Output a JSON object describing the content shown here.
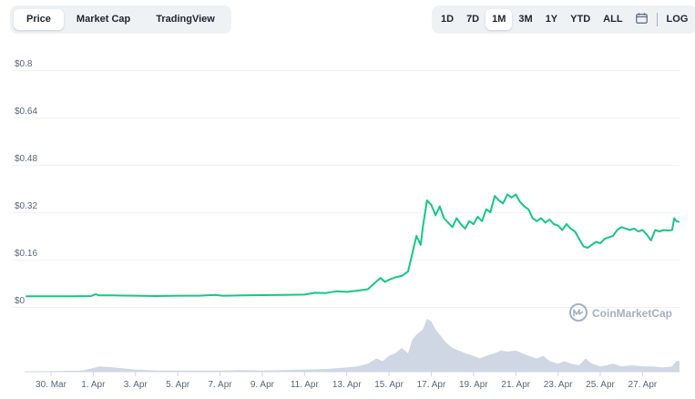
{
  "chart_type_tabs": [
    {
      "label": "Price",
      "active": true
    },
    {
      "label": "Market Cap",
      "active": false
    },
    {
      "label": "TradingView",
      "active": false
    }
  ],
  "range_tabs": [
    {
      "label": "1D",
      "active": false
    },
    {
      "label": "7D",
      "active": false
    },
    {
      "label": "1M",
      "active": true
    },
    {
      "label": "3M",
      "active": false
    },
    {
      "label": "1Y",
      "active": false
    },
    {
      "label": "YTD",
      "active": false
    },
    {
      "label": "ALL",
      "active": false
    }
  ],
  "calendar_icon": "calendar-icon",
  "log_label": "LOG",
  "watermark": {
    "text": "CoinMarketCap",
    "icon": "coinmarketcap-logo-icon"
  },
  "colors": {
    "line": "#16c784",
    "volume": "#cfd6e4",
    "grid": "#eff2f5",
    "text": "#58667e"
  },
  "chart_data": {
    "type": "line",
    "ylabel": "",
    "y_ticks": [
      "$0",
      "$0.16",
      "$0.32",
      "$0.48",
      "$0.64",
      "$0.8"
    ],
    "y_tick_values": [
      0,
      0.16,
      0.32,
      0.48,
      0.64,
      0.8
    ],
    "ylim": [
      0,
      0.8
    ],
    "x_ticks": [
      "30. Mar",
      "1. Apr",
      "3. Apr",
      "5. Apr",
      "7. Apr",
      "9. Apr",
      "11. Apr",
      "13. Apr",
      "15. Apr",
      "17. Apr",
      "19. Apr",
      "21. Apr",
      "23. Apr",
      "25. Apr",
      "27. Apr"
    ],
    "x_tick_days": [
      0,
      2,
      4,
      6,
      8,
      10,
      12,
      14,
      16,
      18,
      20,
      22,
      24,
      26,
      28
    ],
    "xlim_days": [
      -1.25,
      29.75
    ],
    "grid": true,
    "series": [
      {
        "price": [
          [
            -1.2,
            0.036
          ],
          [
            0,
            0.036
          ],
          [
            1,
            0.036
          ],
          [
            1.9,
            0.037
          ],
          [
            2.1,
            0.043
          ],
          [
            2.3,
            0.039
          ],
          [
            3,
            0.039
          ],
          [
            4,
            0.038
          ],
          [
            5,
            0.037
          ],
          [
            6,
            0.038
          ],
          [
            7,
            0.038
          ],
          [
            7.8,
            0.041
          ],
          [
            8.1,
            0.038
          ],
          [
            9,
            0.039
          ],
          [
            10,
            0.04
          ],
          [
            11,
            0.041
          ],
          [
            12,
            0.042
          ],
          [
            12.5,
            0.048
          ],
          [
            13,
            0.047
          ],
          [
            13.5,
            0.053
          ],
          [
            14,
            0.051
          ],
          [
            14.5,
            0.055
          ],
          [
            15,
            0.06
          ],
          [
            15.3,
            0.08
          ],
          [
            15.6,
            0.098
          ],
          [
            15.8,
            0.085
          ],
          [
            16,
            0.092
          ],
          [
            16.3,
            0.1
          ],
          [
            16.6,
            0.105
          ],
          [
            16.9,
            0.12
          ],
          [
            17.1,
            0.18
          ],
          [
            17.3,
            0.24
          ],
          [
            17.5,
            0.21
          ],
          [
            17.6,
            0.27
          ],
          [
            17.8,
            0.36
          ],
          [
            18,
            0.345
          ],
          [
            18.2,
            0.31
          ],
          [
            18.4,
            0.34
          ],
          [
            18.6,
            0.3
          ],
          [
            18.8,
            0.285
          ],
          [
            19,
            0.27
          ],
          [
            19.2,
            0.3
          ],
          [
            19.4,
            0.28
          ],
          [
            19.6,
            0.265
          ],
          [
            19.8,
            0.29
          ],
          [
            20,
            0.28
          ],
          [
            20.2,
            0.305
          ],
          [
            20.4,
            0.29
          ],
          [
            20.6,
            0.33
          ],
          [
            20.8,
            0.32
          ],
          [
            21,
            0.375
          ],
          [
            21.2,
            0.36
          ],
          [
            21.4,
            0.35
          ],
          [
            21.6,
            0.38
          ],
          [
            21.8,
            0.37
          ],
          [
            22,
            0.38
          ],
          [
            22.2,
            0.355
          ],
          [
            22.4,
            0.34
          ],
          [
            22.6,
            0.33
          ],
          [
            22.8,
            0.3
          ],
          [
            23,
            0.29
          ],
          [
            23.2,
            0.3
          ],
          [
            23.4,
            0.285
          ],
          [
            23.6,
            0.295
          ],
          [
            23.8,
            0.28
          ],
          [
            24,
            0.275
          ],
          [
            24.2,
            0.26
          ],
          [
            24.4,
            0.28
          ],
          [
            24.6,
            0.265
          ],
          [
            24.8,
            0.255
          ],
          [
            25,
            0.23
          ],
          [
            25.2,
            0.205
          ],
          [
            25.4,
            0.2
          ],
          [
            25.6,
            0.21
          ],
          [
            25.8,
            0.22
          ],
          [
            26,
            0.215
          ],
          [
            26.2,
            0.23
          ],
          [
            26.4,
            0.235
          ],
          [
            26.6,
            0.24
          ],
          [
            26.8,
            0.26
          ],
          [
            27,
            0.27
          ],
          [
            27.2,
            0.265
          ],
          [
            27.4,
            0.26
          ],
          [
            27.6,
            0.265
          ],
          [
            27.8,
            0.255
          ],
          [
            28,
            0.26
          ],
          [
            28.2,
            0.245
          ],
          [
            28.4,
            0.225
          ],
          [
            28.6,
            0.26
          ],
          [
            28.8,
            0.255
          ],
          [
            29,
            0.26
          ],
          [
            29.2,
            0.258
          ],
          [
            29.4,
            0.26
          ],
          [
            29.5,
            0.3
          ],
          [
            29.6,
            0.29
          ],
          [
            29.75,
            0.287
          ]
        ],
        "volume": [
          [
            -1.25,
            0.0
          ],
          [
            0,
            0.01
          ],
          [
            1.5,
            0.02
          ],
          [
            2.3,
            0.1
          ],
          [
            3,
            0.08
          ],
          [
            4,
            0.04
          ],
          [
            5,
            0.02
          ],
          [
            6,
            0.02
          ],
          [
            7,
            0.02
          ],
          [
            8,
            0.02
          ],
          [
            9,
            0.03
          ],
          [
            10,
            0.02
          ],
          [
            11,
            0.03
          ],
          [
            12,
            0.04
          ],
          [
            13,
            0.05
          ],
          [
            14,
            0.08
          ],
          [
            14.5,
            0.1
          ],
          [
            15,
            0.15
          ],
          [
            15.4,
            0.25
          ],
          [
            15.7,
            0.2
          ],
          [
            16,
            0.3
          ],
          [
            16.3,
            0.35
          ],
          [
            16.6,
            0.45
          ],
          [
            16.9,
            0.35
          ],
          [
            17.1,
            0.6
          ],
          [
            17.3,
            0.7
          ],
          [
            17.6,
            0.8
          ],
          [
            17.8,
            1.0
          ],
          [
            18,
            0.95
          ],
          [
            18.2,
            0.8
          ],
          [
            18.4,
            0.7
          ],
          [
            18.7,
            0.55
          ],
          [
            19,
            0.45
          ],
          [
            19.3,
            0.4
          ],
          [
            19.6,
            0.35
          ],
          [
            20,
            0.3
          ],
          [
            20.3,
            0.25
          ],
          [
            20.6,
            0.3
          ],
          [
            21,
            0.35
          ],
          [
            21.3,
            0.4
          ],
          [
            21.6,
            0.38
          ],
          [
            22,
            0.4
          ],
          [
            22.3,
            0.35
          ],
          [
            22.6,
            0.3
          ],
          [
            23,
            0.25
          ],
          [
            23.3,
            0.3
          ],
          [
            23.6,
            0.2
          ],
          [
            24,
            0.15
          ],
          [
            24.3,
            0.2
          ],
          [
            24.6,
            0.15
          ],
          [
            25,
            0.12
          ],
          [
            25.3,
            0.25
          ],
          [
            25.6,
            0.15
          ],
          [
            26,
            0.1
          ],
          [
            26.3,
            0.12
          ],
          [
            26.6,
            0.15
          ],
          [
            27,
            0.1
          ],
          [
            27.5,
            0.12
          ],
          [
            28,
            0.1
          ],
          [
            28.5,
            0.1
          ],
          [
            29,
            0.08
          ],
          [
            29.4,
            0.1
          ],
          [
            29.6,
            0.2
          ],
          [
            29.75,
            0.2
          ]
        ]
      }
    ]
  }
}
